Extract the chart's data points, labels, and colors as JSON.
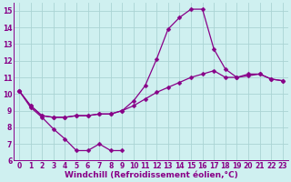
{
  "background_color": "#cff0f0",
  "grid_color": "#aad4d4",
  "line_color": "#880088",
  "markersize": 2.5,
  "linewidth": 0.9,
  "xlim": [
    -0.5,
    23.5
  ],
  "ylim": [
    6,
    15.5
  ],
  "xlabel": "Windchill (Refroidissement éolien,°C)",
  "xlabel_fontsize": 6.5,
  "tick_fontsize": 5.5,
  "xticks": [
    0,
    1,
    2,
    3,
    4,
    5,
    6,
    7,
    8,
    9,
    10,
    11,
    12,
    13,
    14,
    15,
    16,
    17,
    18,
    19,
    20,
    21,
    22,
    23
  ],
  "yticks": [
    6,
    7,
    8,
    9,
    10,
    11,
    12,
    13,
    14,
    15
  ],
  "series": [
    {
      "x": [
        0,
        1,
        2,
        3,
        4,
        5,
        6,
        7,
        8,
        9
      ],
      "y": [
        10.2,
        9.2,
        8.6,
        7.9,
        7.3,
        6.6,
        6.6,
        7.0,
        6.6,
        6.6
      ]
    },
    {
      "x": [
        0,
        1,
        2,
        3,
        4,
        5,
        6,
        7,
        8,
        9,
        10,
        11,
        12,
        13,
        14,
        15,
        16,
        17,
        18,
        19,
        20,
        21,
        22,
        23
      ],
      "y": [
        10.2,
        9.3,
        8.7,
        8.6,
        8.6,
        8.7,
        8.7,
        8.8,
        8.8,
        9.0,
        9.3,
        9.7,
        10.1,
        10.4,
        10.7,
        11.0,
        11.2,
        11.4,
        11.0,
        11.0,
        11.1,
        11.2,
        10.9,
        10.8
      ]
    },
    {
      "x": [
        0,
        1,
        2,
        3,
        4,
        5,
        6,
        7,
        8,
        9,
        10,
        11,
        12,
        13,
        14,
        15,
        16,
        17,
        18,
        19,
        20,
        21,
        22,
        23
      ],
      "y": [
        10.2,
        9.3,
        8.7,
        8.6,
        8.6,
        8.7,
        8.7,
        8.8,
        8.8,
        9.0,
        9.6,
        10.5,
        12.1,
        13.9,
        14.6,
        15.1,
        15.1,
        12.7,
        11.5,
        11.0,
        11.2,
        11.2,
        10.9,
        10.8
      ]
    }
  ]
}
